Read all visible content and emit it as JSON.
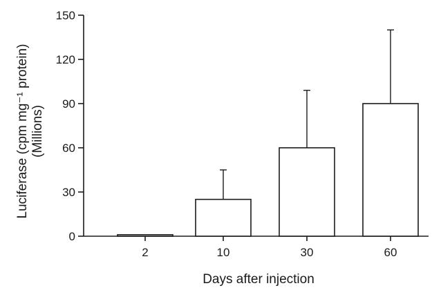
{
  "chart_data": {
    "type": "bar",
    "title": "",
    "xlabel": "Days after injection",
    "ylabel_lines": [
      "Luciferase (cpm mg⁻¹ protein)",
      "(Millions)"
    ],
    "categories": [
      "2",
      "10",
      "30",
      "60"
    ],
    "values": [
      1,
      25,
      60,
      90
    ],
    "error_upper": [
      0,
      45,
      99,
      140
    ],
    "ylim": [
      0,
      150
    ],
    "yticks": [
      "0",
      "30",
      "60",
      "90",
      "120",
      "150"
    ],
    "ytick_values": [
      0,
      30,
      60,
      90,
      120,
      150
    ],
    "grid": false,
    "colors": {
      "bar_fill": "#ffffff",
      "stroke": "#1a1a1a",
      "background": "#ffffff"
    }
  }
}
